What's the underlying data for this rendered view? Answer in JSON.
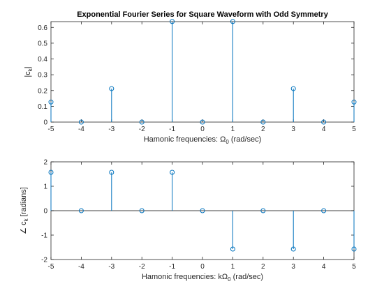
{
  "colors": {
    "stem": "#0072bd",
    "axis": "#262626",
    "background": "#ffffff"
  },
  "chart_data": [
    {
      "type": "stem",
      "title": "Exponential Fourier Series for Square Waveform with Odd Symmetry",
      "xlabel_pre": "Hamonic frequencies: Ω",
      "xlabel_sub": "0",
      "xlabel_post": " (rad/sec)",
      "ylabel_pre": "|c",
      "ylabel_sub": "k",
      "ylabel_post": "|",
      "xlim": [
        -5,
        5
      ],
      "ylim": [
        0,
        0.6366
      ],
      "xticks": [
        -5,
        -4,
        -3,
        -2,
        -1,
        0,
        1,
        2,
        3,
        4,
        5
      ],
      "yticks": [
        0,
        0.1,
        0.2,
        0.3,
        0.4,
        0.5,
        0.6
      ],
      "ytick_labels": [
        "0",
        "0.1",
        "0.2",
        "0.3",
        "0.4",
        "0.5",
        "0.6"
      ],
      "x": [
        -5,
        -4,
        -3,
        -2,
        -1,
        0,
        1,
        2,
        3,
        4,
        5
      ],
      "values": [
        0.127,
        0,
        0.212,
        0,
        0.637,
        0,
        0.637,
        0,
        0.212,
        0,
        0.127
      ],
      "baseline": false
    },
    {
      "type": "stem",
      "title": "",
      "xlabel_pre": "Hamonic frequencies: kΩ",
      "xlabel_sub": "0",
      "xlabel_post": " (rad/sec)",
      "ylabel_pre": "∠ c",
      "ylabel_sub": "k",
      "ylabel_post": " [radians]",
      "xlim": [
        -5,
        5
      ],
      "ylim": [
        -2,
        2
      ],
      "xticks": [
        -5,
        -4,
        -3,
        -2,
        -1,
        0,
        1,
        2,
        3,
        4,
        5
      ],
      "yticks": [
        -2,
        -1,
        0,
        1,
        2
      ],
      "ytick_labels": [
        "-2",
        "-1",
        "0",
        "1",
        "2"
      ],
      "x": [
        -5,
        -4,
        -3,
        -2,
        -1,
        0,
        1,
        2,
        3,
        4,
        5
      ],
      "values": [
        1.5708,
        0,
        1.5708,
        0,
        1.5708,
        0,
        -1.5708,
        0,
        -1.5708,
        0,
        -1.5708
      ],
      "baseline": true
    }
  ]
}
